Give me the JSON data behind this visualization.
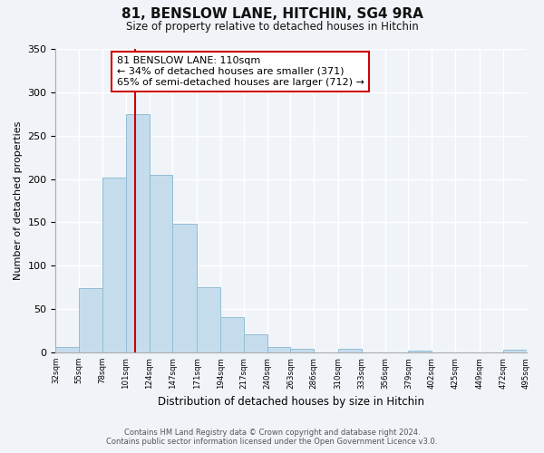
{
  "title": "81, BENSLOW LANE, HITCHIN, SG4 9RA",
  "subtitle": "Size of property relative to detached houses in Hitchin",
  "xlabel": "Distribution of detached houses by size in Hitchin",
  "ylabel": "Number of detached properties",
  "bar_values": [
    6,
    74,
    202,
    275,
    205,
    148,
    75,
    41,
    21,
    6,
    4,
    0,
    4,
    0,
    0,
    2,
    0,
    0,
    0,
    3
  ],
  "bin_edges": [
    32,
    55,
    78,
    101,
    124,
    147,
    171,
    194,
    217,
    240,
    263,
    286,
    310,
    333,
    356,
    379,
    402,
    425,
    449,
    472,
    495
  ],
  "bin_labels": [
    "32sqm",
    "55sqm",
    "78sqm",
    "101sqm",
    "124sqm",
    "147sqm",
    "171sqm",
    "194sqm",
    "217sqm",
    "240sqm",
    "263sqm",
    "286sqm",
    "310sqm",
    "333sqm",
    "356sqm",
    "379sqm",
    "402sqm",
    "425sqm",
    "449sqm",
    "472sqm",
    "495sqm"
  ],
  "bar_color": "#c5dced",
  "bar_edge_color": "#92bdd4",
  "vline_x": 110,
  "vline_color": "#cc0000",
  "annotation_title": "81 BENSLOW LANE: 110sqm",
  "annotation_line1": "← 34% of detached houses are smaller (371)",
  "annotation_line2": "65% of semi-detached houses are larger (712) →",
  "annotation_box_color": "#ffffff",
  "annotation_box_edge": "#cc0000",
  "ylim": [
    0,
    350
  ],
  "yticks": [
    0,
    50,
    100,
    150,
    200,
    250,
    300,
    350
  ],
  "footer1": "Contains HM Land Registry data © Crown copyright and database right 2024.",
  "footer2": "Contains public sector information licensed under the Open Government Licence v3.0.",
  "background_color": "#f0f4f8"
}
